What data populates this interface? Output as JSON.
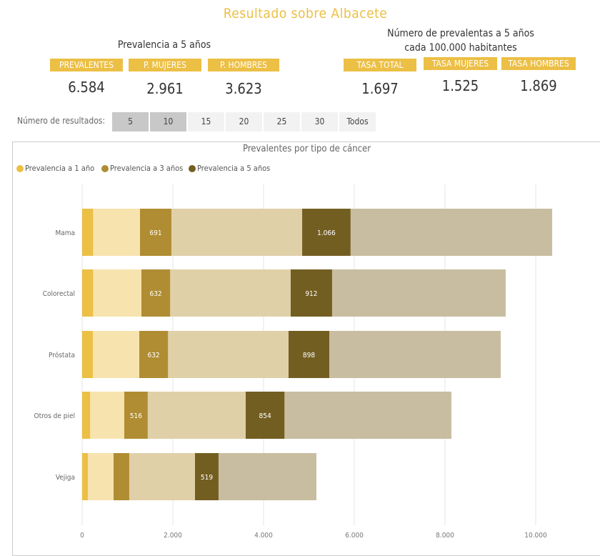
{
  "title": "Resultado sobre  Albacete",
  "left_panel": {
    "subtitle": "Prevalencia a 5 años",
    "kpis": [
      {
        "label": "PREVALENTES",
        "value": "6.584"
      },
      {
        "label": "P. MUJERES",
        "value": "2.961"
      },
      {
        "label": "P. HOMBRES",
        "value": "3.623"
      }
    ]
  },
  "right_panel": {
    "subtitle_line1": "Número de prevalentas a 5 años",
    "subtitle_line2": "cada 100.000 habitantes",
    "kpis": [
      {
        "label": "TASA TOTAL",
        "value": "1.697"
      },
      {
        "label": "TASA MUJERES",
        "value": "1.525"
      },
      {
        "label": "TASA HOMBRES",
        "value": "1.869"
      }
    ]
  },
  "results_slicer": {
    "label": "Número de resultados:",
    "options": [
      {
        "label": "5",
        "selected": true
      },
      {
        "label": "10",
        "selected": true
      },
      {
        "label": "15",
        "selected": false
      },
      {
        "label": "20",
        "selected": false
      },
      {
        "label": "25",
        "selected": false
      },
      {
        "label": "30",
        "selected": false
      },
      {
        "label": "Todos",
        "selected": false
      }
    ]
  },
  "chart_data": {
    "type": "bar",
    "orientation": "horizontal",
    "stacked": true,
    "title": "Prevalentes por tipo de cáncer",
    "legend_position": "top-left",
    "grid": true,
    "xlim": [
      0,
      10500
    ],
    "xticks": [
      "0",
      "2.000",
      "4.000",
      "6.000",
      "8.000",
      "10.000"
    ],
    "xtick_values": [
      0,
      2000,
      4000,
      6000,
      8000,
      10000
    ],
    "categories": [
      "Mama",
      "Colorectal",
      "Próstata",
      "Otros de piel",
      "Vejiga"
    ],
    "series": [
      {
        "name": "Prevalencia a 1 año",
        "color": "#ECBF45",
        "light_color": "#F7E3AE",
        "highlighted": [
          240,
          240,
          235,
          175,
          125
        ],
        "totals": [
          1276,
          1307,
          1260,
          929,
          693
        ],
        "labels": [
          "",
          "",
          "",
          "",
          ""
        ]
      },
      {
        "name": "Prevalencia a 3 años",
        "color": "#B08D32",
        "light_color": "#E0D0A8",
        "highlighted": [
          691,
          632,
          632,
          516,
          345
        ],
        "totals": [
          3575,
          3291,
          3291,
          2677,
          1795
        ],
        "labels": [
          "691",
          "632",
          "632",
          "516",
          ""
        ]
      },
      {
        "name": "Prevalencia a 5 años",
        "color": "#735E22",
        "light_color": "#C8BDA0",
        "highlighted": [
          1066,
          912,
          898,
          854,
          519
        ],
        "totals": [
          5512,
          4740,
          4677,
          4535,
          2677
        ],
        "labels": [
          "1.066",
          "912",
          "898",
          "854",
          "519"
        ]
      }
    ]
  }
}
